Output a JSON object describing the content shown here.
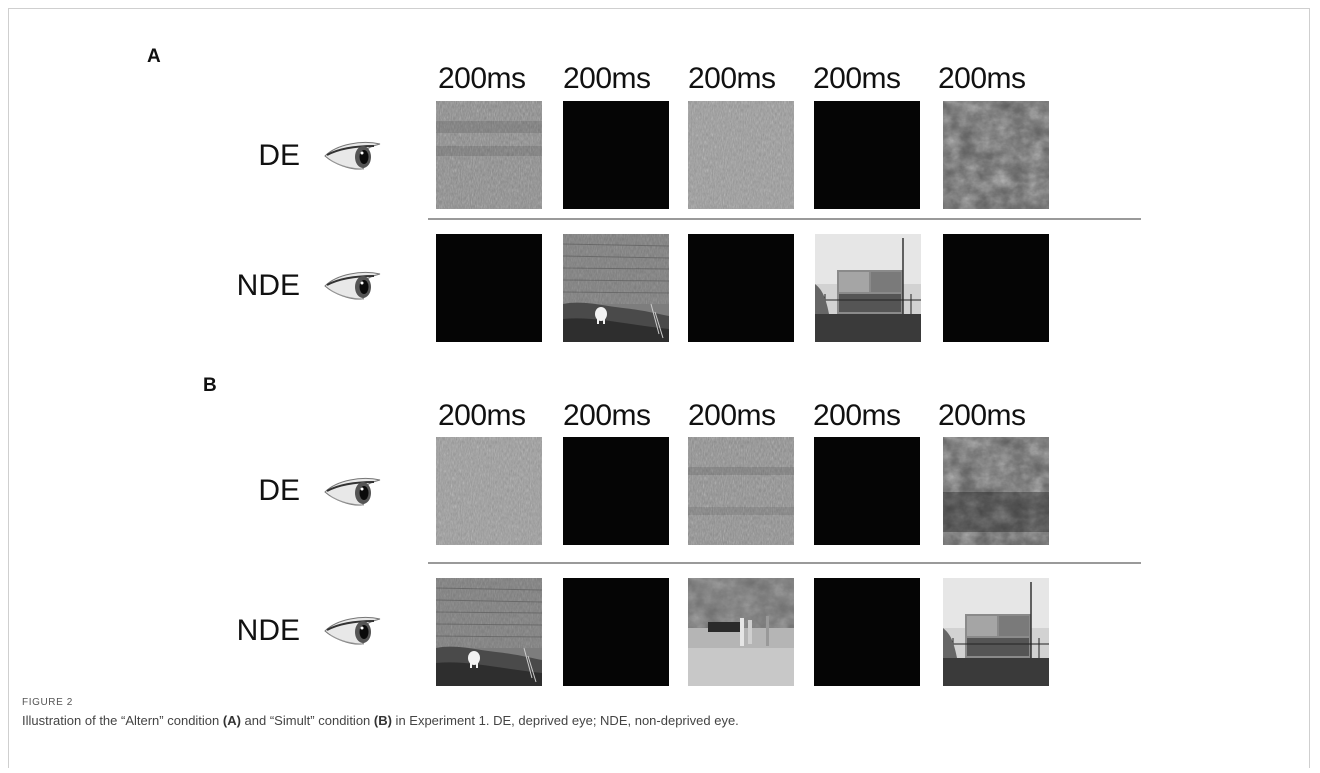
{
  "figure": {
    "panels": [
      {
        "letter": "A",
        "timings": [
          "200ms",
          "200ms",
          "200ms",
          "200ms",
          "200ms"
        ],
        "rows": [
          {
            "label": "DE",
            "eye_icon": "eye-icon",
            "tiles": [
              "noise",
              "black",
              "noise",
              "black",
              "noise-dark"
            ]
          },
          {
            "label": "NDE",
            "eye_icon": "eye-icon",
            "tiles": [
              "black",
              "photo-lake-dog",
              "black",
              "photo-building",
              "black"
            ]
          }
        ]
      },
      {
        "letter": "B",
        "timings": [
          "200ms",
          "200ms",
          "200ms",
          "200ms",
          "200ms"
        ],
        "rows": [
          {
            "label": "DE",
            "eye_icon": "eye-icon",
            "tiles": [
              "noise",
              "black",
              "noise",
              "black",
              "noise-dark"
            ]
          },
          {
            "label": "NDE",
            "eye_icon": "eye-icon",
            "tiles": [
              "photo-lake-dog",
              "black",
              "photo-field",
              "black",
              "photo-building"
            ]
          }
        ]
      }
    ],
    "figure_label": "FIGURE 2",
    "caption": {
      "pre": "Illustration of the “Altern” condition ",
      "a": "(A)",
      "mid": " and “Simult” condition ",
      "b": "(B)",
      "post": " in Experiment 1. DE, deprived eye; NDE, non-deprived eye."
    }
  }
}
